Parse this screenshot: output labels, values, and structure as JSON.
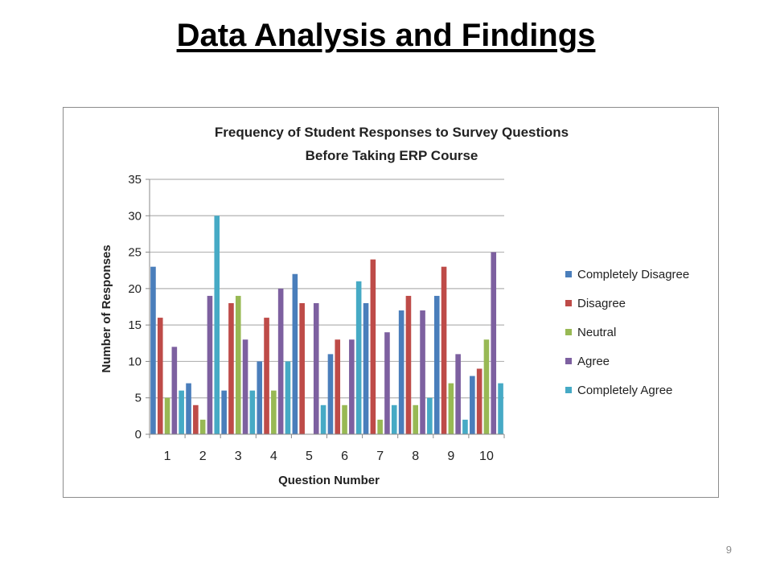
{
  "slide": {
    "title": "Data Analysis and Findings",
    "page_number": "9"
  },
  "chart_data": {
    "type": "bar",
    "title": "Frequency of Student Responses to Survey Questions",
    "subtitle": "Before Taking ERP Course",
    "xlabel": "Question Number",
    "ylabel": "Number of Responses",
    "categories": [
      "1",
      "2",
      "3",
      "4",
      "5",
      "6",
      "7",
      "8",
      "9",
      "10"
    ],
    "ylim": [
      0,
      35
    ],
    "yticks": [
      0,
      5,
      10,
      15,
      20,
      25,
      30,
      35
    ],
    "grid": true,
    "legend_position": "right",
    "series": [
      {
        "name": "Completely Disagree",
        "color": "#4a7ebb",
        "values": [
          23,
          7,
          6,
          10,
          22,
          11,
          18,
          17,
          19,
          8
        ]
      },
      {
        "name": "Disagree",
        "color": "#be4b48",
        "values": [
          16,
          4,
          18,
          16,
          18,
          13,
          24,
          19,
          23,
          9
        ]
      },
      {
        "name": "Neutral",
        "color": "#98b954",
        "values": [
          5,
          2,
          19,
          6,
          0,
          4,
          2,
          4,
          7,
          13
        ]
      },
      {
        "name": "Agree",
        "color": "#7d60a0",
        "values": [
          12,
          19,
          13,
          20,
          18,
          13,
          14,
          17,
          11,
          25
        ]
      },
      {
        "name": "Completely Agree",
        "color": "#46aac5",
        "values": [
          6,
          30,
          6,
          10,
          4,
          21,
          4,
          5,
          2,
          7
        ]
      }
    ]
  }
}
